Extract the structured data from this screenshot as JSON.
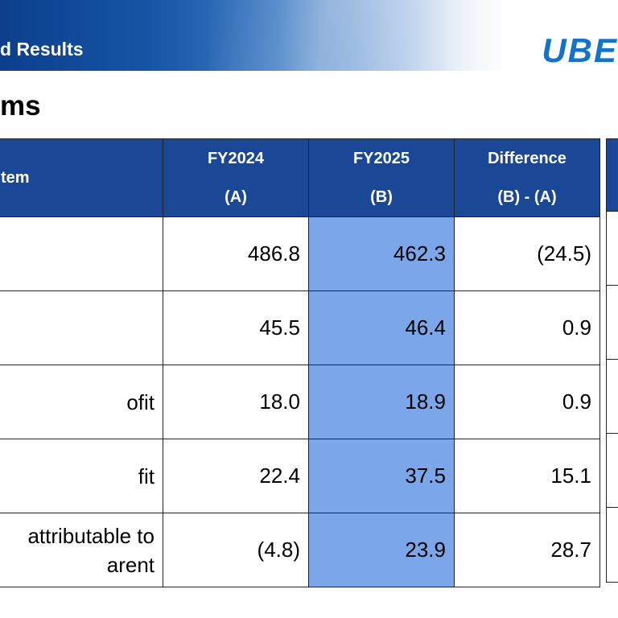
{
  "header": {
    "title": "d Results",
    "logo_text": "UBE"
  },
  "section_title": "ms",
  "table": {
    "columns": [
      {
        "key": "item",
        "line1": "tem",
        "line2": ""
      },
      {
        "key": "fy2024",
        "line1": "FY2024",
        "line2": "(A)"
      },
      {
        "key": "fy2025",
        "line1": "FY2025",
        "line2": "(B)"
      },
      {
        "key": "difference",
        "line1": "Difference",
        "line2": "(B) - (A)"
      }
    ],
    "rows": [
      {
        "item": "",
        "fy2024": "486.8",
        "fy2025": "462.3",
        "difference": "(24.5)"
      },
      {
        "item": "",
        "fy2024": "45.5",
        "fy2025": "46.4",
        "difference": "0.9"
      },
      {
        "item": "ofit",
        "fy2024": "18.0",
        "fy2025": "18.9",
        "difference": "0.9"
      },
      {
        "item": "fit",
        "fy2024": "22.4",
        "fy2025": "37.5",
        "difference": "15.1"
      },
      {
        "item": "attributable to\narent",
        "fy2024": "(4.8)",
        "fy2025": "23.9",
        "difference": "28.7"
      }
    ]
  },
  "colors": {
    "header_fill": "#1a4896",
    "highlight_column": "#7ba7ea",
    "logo": "#1273c7"
  }
}
